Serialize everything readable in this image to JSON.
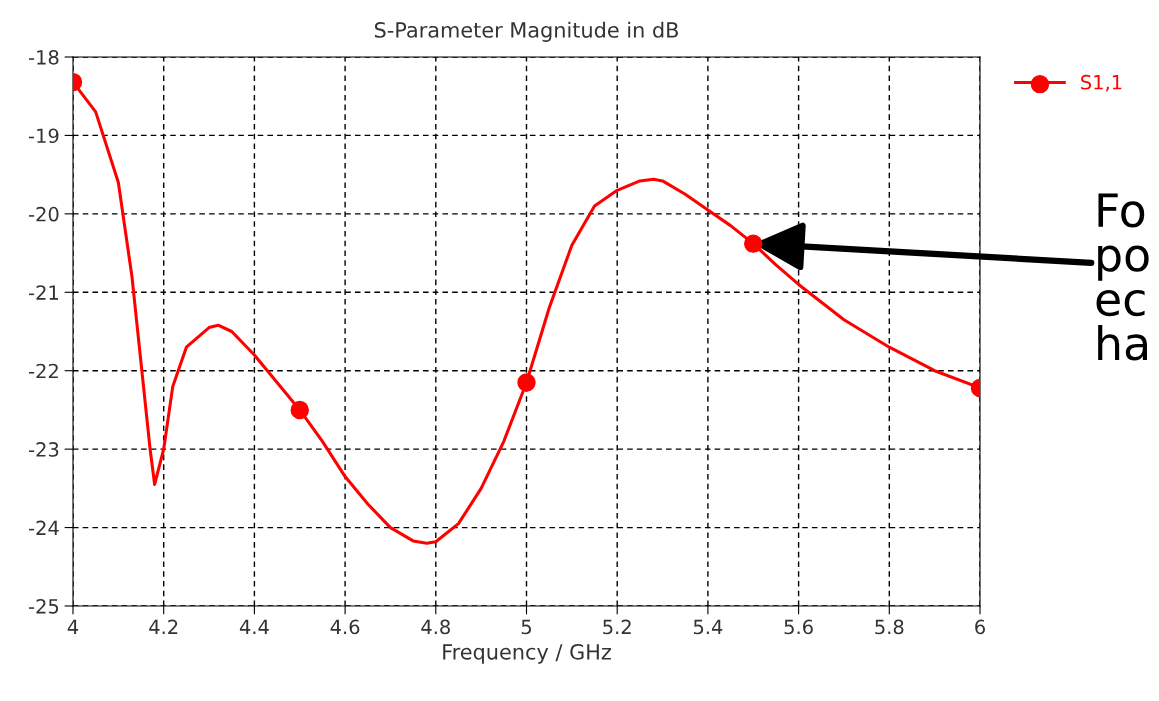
{
  "chart_data": {
    "type": "line",
    "title": "S-Parameter Magnitude in dB",
    "xlabel": "Frequency / GHz",
    "xlim": [
      4,
      6
    ],
    "xticks": [
      4,
      4.2,
      4.4,
      4.6,
      4.8,
      5,
      5.2,
      5.4,
      5.6,
      5.8,
      6
    ],
    "ylim": [
      -25,
      -18
    ],
    "yticks": [
      -25,
      -24,
      -23,
      -22,
      -21,
      -20,
      -19,
      -18
    ],
    "grid": true,
    "legend": "top right",
    "line_style": "solid",
    "series": [
      {
        "name": "S1,1",
        "color": "#ff0000",
        "marker": "none",
        "x": [
          4.0,
          4.05,
          4.1,
          4.13,
          4.15,
          4.17,
          4.18,
          4.2,
          4.22,
          4.25,
          4.3,
          4.32,
          4.35,
          4.4,
          4.45,
          4.5,
          4.55,
          4.6,
          4.65,
          4.7,
          4.75,
          4.78,
          4.8,
          4.85,
          4.9,
          4.95,
          5.0,
          5.05,
          5.1,
          5.15,
          5.2,
          5.25,
          5.28,
          5.3,
          5.35,
          5.4,
          5.45,
          5.5,
          5.55,
          5.6,
          5.7,
          5.8,
          5.9,
          6.0
        ],
        "values": [
          -18.32,
          -18.7,
          -19.6,
          -20.8,
          -21.9,
          -23.0,
          -23.45,
          -23.0,
          -22.2,
          -21.7,
          -21.45,
          -21.42,
          -21.5,
          -21.8,
          -22.15,
          -22.5,
          -22.9,
          -23.35,
          -23.7,
          -24.0,
          -24.17,
          -24.2,
          -24.18,
          -23.95,
          -23.5,
          -22.9,
          -22.15,
          -21.2,
          -20.4,
          -19.9,
          -19.7,
          -19.58,
          -19.56,
          -19.58,
          -19.75,
          -19.95,
          -20.15,
          -20.38,
          -20.65,
          -20.9,
          -21.35,
          -21.7,
          -22.0,
          -22.22
        ]
      },
      {
        "type": "scatter",
        "color": "#ff0000",
        "marker": "circle",
        "x": [
          4.0,
          4.5,
          5.0,
          5.5,
          6.0
        ],
        "values": [
          -18.32,
          -22.5,
          -22.15,
          -20.38,
          -22.22
        ]
      }
    ],
    "annotations": [
      {
        "text": "Fo\npo\nec\nha",
        "x": 5.5,
        "y": -20.38
      }
    ]
  }
}
